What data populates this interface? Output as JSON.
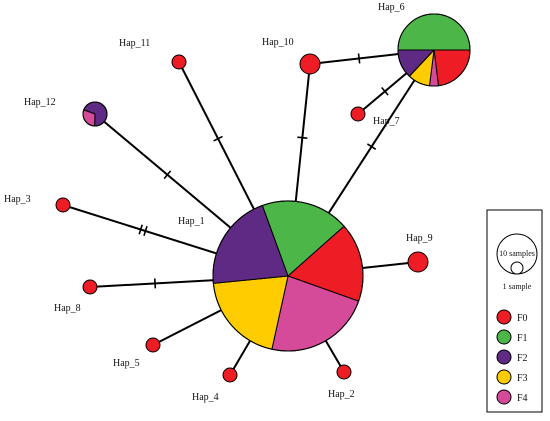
{
  "diagram": {
    "type": "haplotype-network",
    "groups": [
      {
        "id": "F0",
        "label": "F0",
        "color": "#ee1c24"
      },
      {
        "id": "F1",
        "label": "F1",
        "color": "#4cb648"
      },
      {
        "id": "F2",
        "label": "F2",
        "color": "#5e2a84"
      },
      {
        "id": "F3",
        "label": "F3",
        "color": "#ffcc00"
      },
      {
        "id": "F4",
        "label": "F4",
        "color": "#d64a9a"
      }
    ],
    "haplotypes": [
      {
        "id": "hap-1",
        "label": "Hap_1",
        "composition": {
          "F1": 0.19,
          "F0": 0.17,
          "F4": 0.23,
          "F3": 0.2,
          "F2": 0.21
        }
      },
      {
        "id": "hap-2",
        "label": "Hap_2",
        "composition": {
          "F0": 1
        }
      },
      {
        "id": "hap-3",
        "label": "Hap_3",
        "composition": {
          "F0": 1
        }
      },
      {
        "id": "hap-4",
        "label": "Hap_4",
        "composition": {
          "F0": 1
        }
      },
      {
        "id": "hap-5",
        "label": "Hap_5",
        "composition": {
          "F0": 1
        }
      },
      {
        "id": "hap-6",
        "label": "Hap_6",
        "composition": {
          "F0": 0.23,
          "F4": 0.04,
          "F3": 0.1,
          "F2": 0.13,
          "F1": 0.5
        }
      },
      {
        "id": "hap-7",
        "label": "Hap_7",
        "composition": {
          "F0": 1
        }
      },
      {
        "id": "hap-8",
        "label": "Hap_8",
        "composition": {
          "F0": 1
        }
      },
      {
        "id": "hap-9",
        "label": "Hap_9",
        "composition": {
          "F0": 1
        }
      },
      {
        "id": "hap-10",
        "label": "Hap_10",
        "composition": {
          "F0": 1
        }
      },
      {
        "id": "hap-11",
        "label": "Hap_11",
        "composition": {
          "F0": 1
        }
      },
      {
        "id": "hap-12",
        "label": "Hap_12",
        "composition": {
          "F2": 0.7,
          "F4": 0.3
        }
      }
    ],
    "edges": [
      {
        "from": "hap-1",
        "to": "hap-2",
        "mutations": 0
      },
      {
        "from": "hap-1",
        "to": "hap-3",
        "mutations": 2
      },
      {
        "from": "hap-1",
        "to": "hap-4",
        "mutations": 0
      },
      {
        "from": "hap-1",
        "to": "hap-5",
        "mutations": 0
      },
      {
        "from": "hap-1",
        "to": "hap-6",
        "mutations": 1
      },
      {
        "from": "hap-1",
        "to": "hap-8",
        "mutations": 1
      },
      {
        "from": "hap-1",
        "to": "hap-9",
        "mutations": 0
      },
      {
        "from": "hap-1",
        "to": "hap-10",
        "mutations": 1
      },
      {
        "from": "hap-1",
        "to": "hap-11",
        "mutations": 1
      },
      {
        "from": "hap-1",
        "to": "hap-12",
        "mutations": 1
      },
      {
        "from": "hap-10",
        "to": "hap-6",
        "mutations": 1
      },
      {
        "from": "hap-7",
        "to": "hap-6",
        "mutations": 1
      }
    ],
    "legend": {
      "size_large_label": "10 samples",
      "size_small_label": "1 sample"
    }
  }
}
